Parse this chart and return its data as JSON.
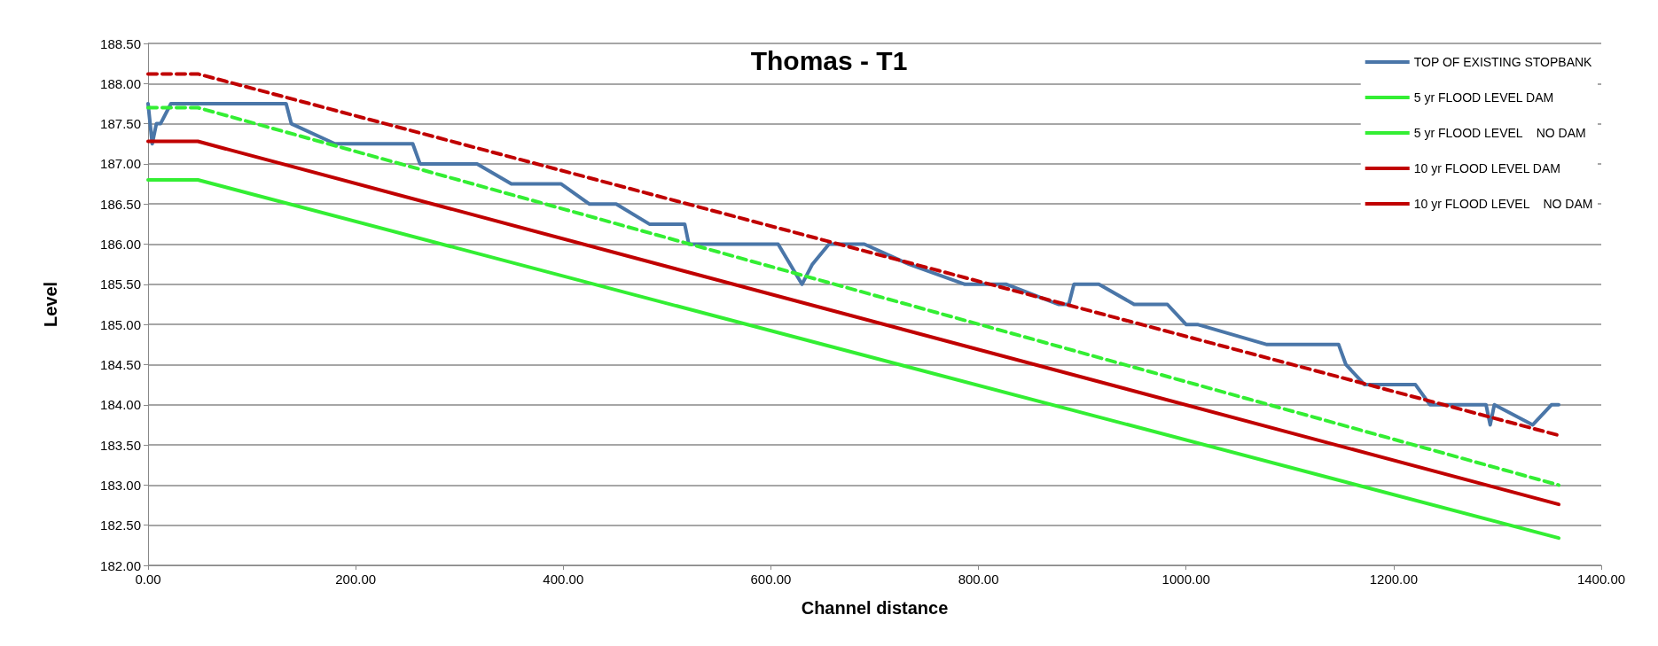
{
  "chart_data": {
    "type": "line",
    "title": "Thomas - T1",
    "xlabel": "Channel distance",
    "ylabel": "Level",
    "xlim": [
      0,
      1400
    ],
    "xticks": [
      {
        "value": 0,
        "label": "0.00"
      },
      {
        "value": 200,
        "label": "200.00"
      },
      {
        "value": 400,
        "label": "400.00"
      },
      {
        "value": 600,
        "label": "600.00"
      },
      {
        "value": 800,
        "label": "800.00"
      },
      {
        "value": 1000,
        "label": "1000.00"
      },
      {
        "value": 1200,
        "label": "1200.00"
      },
      {
        "value": 1400,
        "label": "1400.00"
      }
    ],
    "ylim": [
      182,
      188.5
    ],
    "yticks": [
      {
        "value": 182,
        "label": "182.00"
      },
      {
        "value": 182.5,
        "label": "182.50"
      },
      {
        "value": 183,
        "label": "183.00"
      },
      {
        "value": 183.5,
        "label": "183.50"
      },
      {
        "value": 184,
        "label": "184.00"
      },
      {
        "value": 184.5,
        "label": "184.50"
      },
      {
        "value": 185,
        "label": "185.00"
      },
      {
        "value": 185.5,
        "label": "185.50"
      },
      {
        "value": 186,
        "label": "186.00"
      },
      {
        "value": 186.5,
        "label": "186.50"
      },
      {
        "value": 187,
        "label": "187.00"
      },
      {
        "value": 187.5,
        "label": "187.50"
      },
      {
        "value": 188,
        "label": "188.00"
      },
      {
        "value": 188.5,
        "label": "188.50"
      }
    ],
    "grid": "y",
    "legend": "top right",
    "marker": "none",
    "series": [
      {
        "name": "TOP OF EXISTING STOPBANK",
        "color": "#4a76a8",
        "line_style": "solid",
        "x": [
          0,
          4,
          8,
          12,
          22,
          133,
          138,
          180,
          255,
          262,
          317,
          350,
          398,
          425,
          451,
          483,
          517,
          521,
          607,
          630,
          640,
          656,
          690,
          733,
          787,
          827,
          877,
          887,
          892,
          916,
          950,
          982,
          1000,
          1011,
          1078,
          1147,
          1154,
          1172,
          1221,
          1235,
          1289,
          1293,
          1297,
          1334,
          1352,
          1359
        ],
        "values": [
          187.75,
          187.25,
          187.5,
          187.5,
          187.75,
          187.75,
          187.5,
          187.25,
          187.25,
          187,
          187,
          186.75,
          186.75,
          186.5,
          186.5,
          186.25,
          186.25,
          186,
          186,
          185.5,
          185.75,
          186,
          186,
          185.75,
          185.5,
          185.5,
          185.25,
          185.25,
          185.5,
          185.5,
          185.25,
          185.25,
          185,
          185,
          184.75,
          184.75,
          184.5,
          184.25,
          184.25,
          184,
          184,
          183.75,
          184,
          183.75,
          184,
          184
        ]
      },
      {
        "name": "5 yr FLOOD LEVEL DAM",
        "color": "#33ee33",
        "line_style": "solid",
        "x": [
          0,
          48,
          1359
        ],
        "values": [
          186.8,
          186.8,
          182.34
        ]
      },
      {
        "name": "5 yr FLOOD LEVEL    NO DAM",
        "color": "#33ee33",
        "line_style": "dashed",
        "x": [
          0,
          48,
          1359
        ],
        "values": [
          187.7,
          187.7,
          183
        ]
      },
      {
        "name": "10 yr FLOOD LEVEL DAM",
        "color": "#c00000",
        "line_style": "solid",
        "x": [
          0,
          48,
          1359
        ],
        "values": [
          187.28,
          187.28,
          182.76
        ]
      },
      {
        "name": "10 yr FLOOD LEVEL    NO DAM",
        "color": "#c00000",
        "line_style": "dashed",
        "x": [
          0,
          48,
          1359
        ],
        "values": [
          188.12,
          188.12,
          183.62
        ]
      }
    ]
  }
}
